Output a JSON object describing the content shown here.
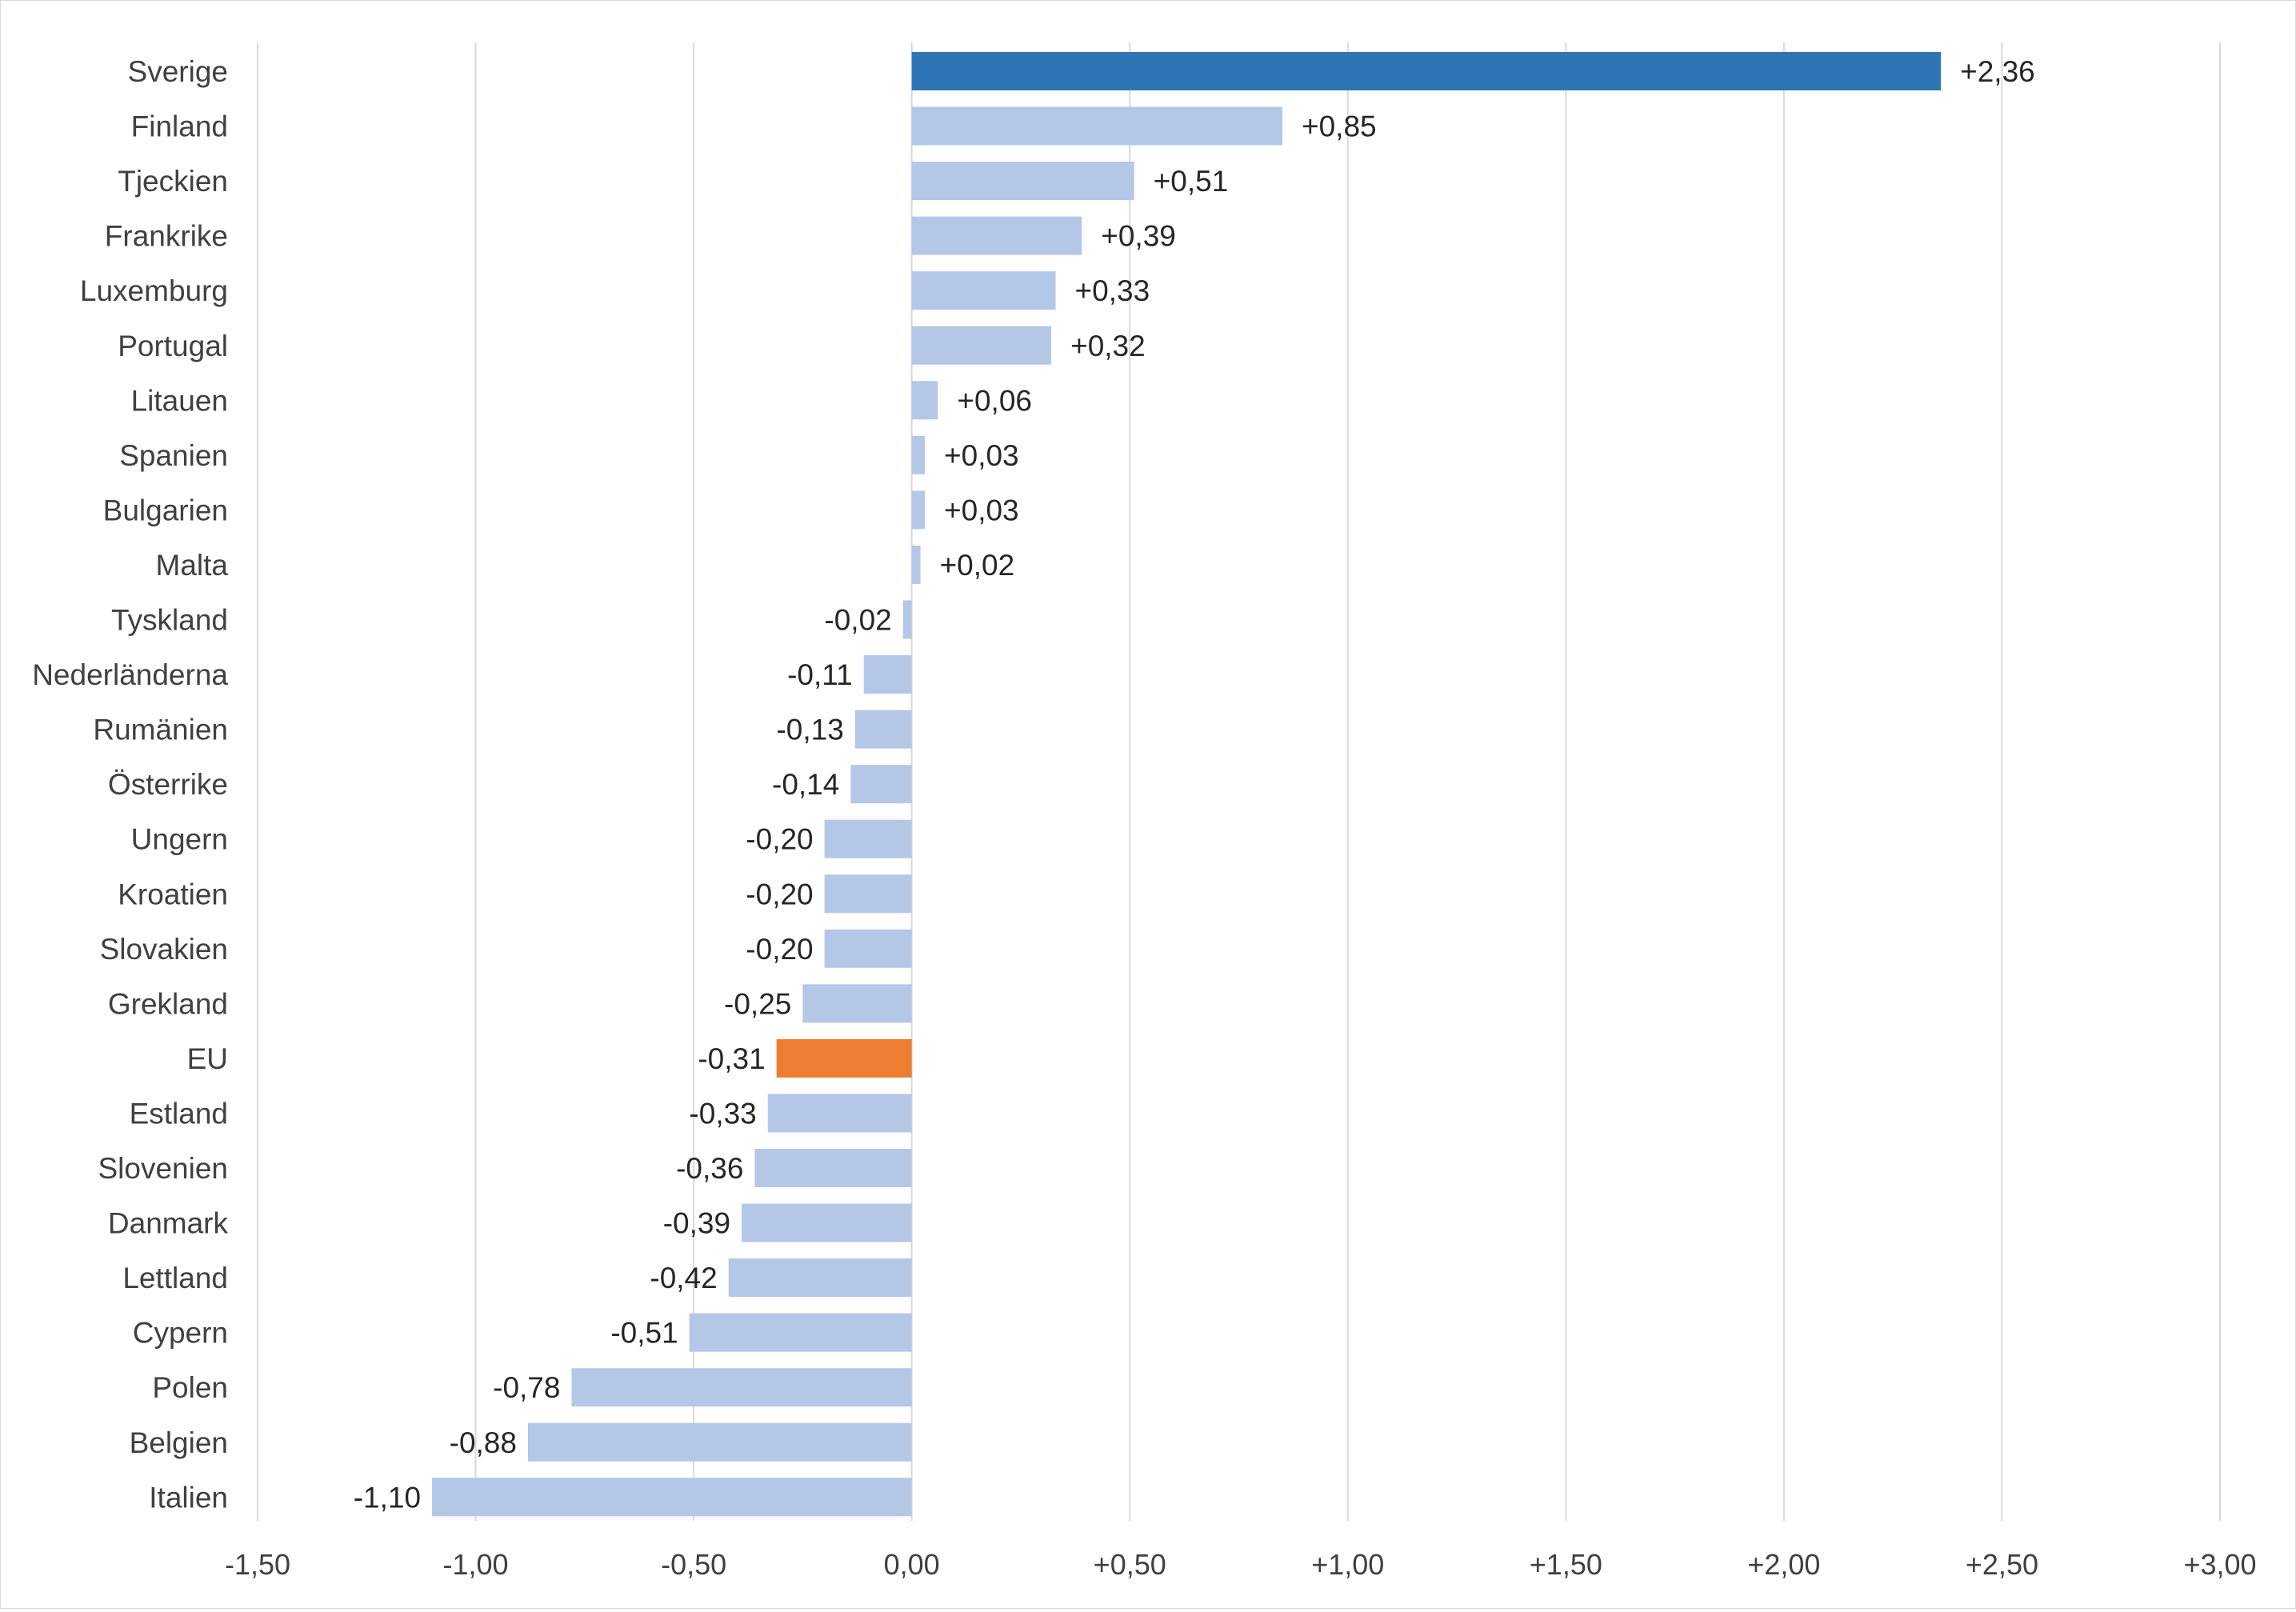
{
  "chart_data": {
    "type": "bar",
    "orientation": "horizontal",
    "title": "",
    "xlabel": "",
    "ylabel": "",
    "xlim": [
      -1.5,
      3.0
    ],
    "grid": true,
    "legend": "none",
    "ticks": [
      -1.5,
      -1.0,
      -0.5,
      0.0,
      0.5,
      1.0,
      1.5,
      2.0,
      2.5,
      3.0
    ],
    "tick_labels": [
      "-1,50",
      "-1,00",
      "-0,50",
      "0,00",
      "+0,50",
      "+1,00",
      "+1,50",
      "+2,00",
      "+2,50",
      "+3,00"
    ],
    "colors": {
      "highlight": "#2E75B6",
      "eu": "#ED7D31",
      "default": "#B4C7E7",
      "grid": "#D9D9D9"
    },
    "bars": [
      {
        "category": "Sverige",
        "value": 2.36,
        "label": "+2,36",
        "color": "highlight"
      },
      {
        "category": "Finland",
        "value": 0.85,
        "label": "+0,85",
        "color": "default"
      },
      {
        "category": "Tjeckien",
        "value": 0.51,
        "label": "+0,51",
        "color": "default"
      },
      {
        "category": "Frankrike",
        "value": 0.39,
        "label": "+0,39",
        "color": "default"
      },
      {
        "category": "Luxemburg",
        "value": 0.33,
        "label": "+0,33",
        "color": "default"
      },
      {
        "category": "Portugal",
        "value": 0.32,
        "label": "+0,32",
        "color": "default"
      },
      {
        "category": "Litauen",
        "value": 0.06,
        "label": "+0,06",
        "color": "default"
      },
      {
        "category": "Spanien",
        "value": 0.03,
        "label": "+0,03",
        "color": "default"
      },
      {
        "category": "Bulgarien",
        "value": 0.03,
        "label": "+0,03",
        "color": "default"
      },
      {
        "category": "Malta",
        "value": 0.02,
        "label": "+0,02",
        "color": "default"
      },
      {
        "category": "Tyskland",
        "value": -0.02,
        "label": "-0,02",
        "color": "default"
      },
      {
        "category": "Nederländerna",
        "value": -0.11,
        "label": "-0,11",
        "color": "default"
      },
      {
        "category": "Rumänien",
        "value": -0.13,
        "label": "-0,13",
        "color": "default"
      },
      {
        "category": "Österrike",
        "value": -0.14,
        "label": "-0,14",
        "color": "default"
      },
      {
        "category": "Ungern",
        "value": -0.2,
        "label": "-0,20",
        "color": "default"
      },
      {
        "category": "Kroatien",
        "value": -0.2,
        "label": "-0,20",
        "color": "default"
      },
      {
        "category": "Slovakien",
        "value": -0.2,
        "label": "-0,20",
        "color": "default"
      },
      {
        "category": "Grekland",
        "value": -0.25,
        "label": "-0,25",
        "color": "default"
      },
      {
        "category": "EU",
        "value": -0.31,
        "label": "-0,31",
        "color": "eu"
      },
      {
        "category": "Estland",
        "value": -0.33,
        "label": "-0,33",
        "color": "default"
      },
      {
        "category": "Slovenien",
        "value": -0.36,
        "label": "-0,36",
        "color": "default"
      },
      {
        "category": "Danmark",
        "value": -0.39,
        "label": "-0,39",
        "color": "default"
      },
      {
        "category": "Lettland",
        "value": -0.42,
        "label": "-0,42",
        "color": "default"
      },
      {
        "category": "Cypern",
        "value": -0.51,
        "label": "-0,51",
        "color": "default"
      },
      {
        "category": "Polen",
        "value": -0.78,
        "label": "-0,78",
        "color": "default"
      },
      {
        "category": "Belgien",
        "value": -0.88,
        "label": "-0,88",
        "color": "default"
      },
      {
        "category": "Italien",
        "value": -1.1,
        "label": "-1,10",
        "color": "default"
      }
    ]
  }
}
